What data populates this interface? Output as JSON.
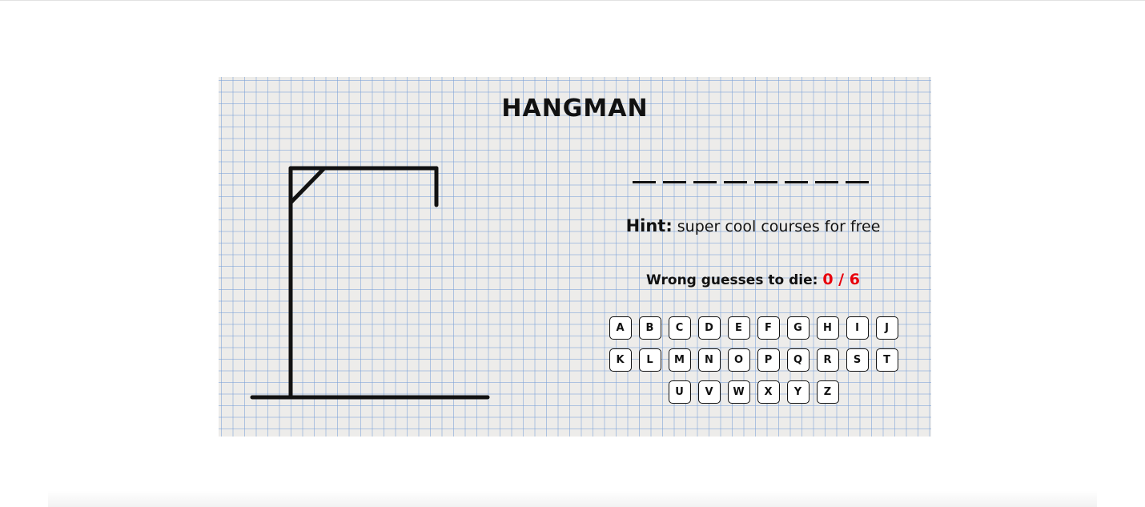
{
  "game": {
    "title": "HANGMAN",
    "word_slots": [
      "",
      "",
      "",
      "",
      "",
      "",
      "",
      ""
    ],
    "hint_label": "Hint:",
    "hint_text": "super cool courses for free",
    "guesses_label": "Wrong guesses to die:",
    "guesses_count": "0 / 6",
    "wrong_guesses": 0,
    "max_guesses": 6
  },
  "keyboard": {
    "letters": [
      "A",
      "B",
      "C",
      "D",
      "E",
      "F",
      "G",
      "H",
      "I",
      "J",
      "K",
      "L",
      "M",
      "N",
      "O",
      "P",
      "Q",
      "R",
      "S",
      "T",
      "U",
      "V",
      "W",
      "X",
      "Y",
      "Z"
    ]
  },
  "colors": {
    "ink": "#111111",
    "counter": "#e8000b",
    "paper": "#edecea",
    "grid": "#78a0d7"
  }
}
